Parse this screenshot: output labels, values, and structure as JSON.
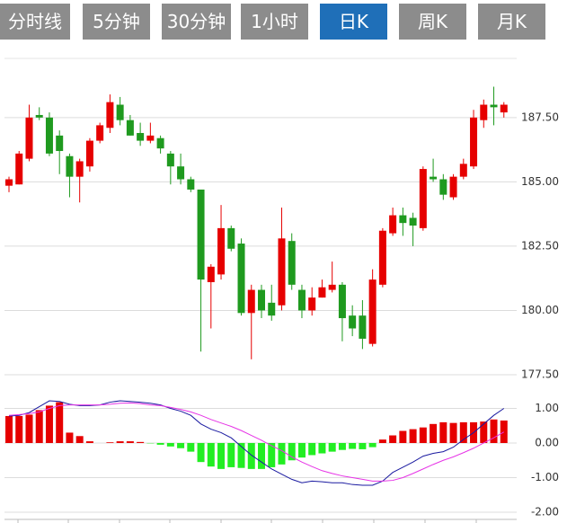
{
  "tabs": [
    {
      "label": "分时线"
    },
    {
      "label": "5分钟"
    },
    {
      "label": "30分钟"
    },
    {
      "label": "1小时"
    },
    {
      "label": "日K"
    },
    {
      "label": "周K"
    },
    {
      "label": "月K"
    }
  ],
  "active_tab": 4,
  "chart_data": [
    {
      "type": "candlestick",
      "up_color": "#e60000",
      "down_color": "#1f9a1f",
      "ylim": [
        177.5,
        189.8
      ],
      "yticks": [
        {
          "value": 177.5,
          "label": "177.50"
        },
        {
          "value": 180,
          "label": "180.00"
        },
        {
          "value": 182.5,
          "label": "182.50"
        },
        {
          "value": 185,
          "label": "185.00"
        },
        {
          "value": 187.5,
          "label": "187.50"
        }
      ],
      "open": [
        184.85,
        184.9,
        185.9,
        187.6,
        187.5,
        186.8,
        186.0,
        185.2,
        185.6,
        186.6,
        187.1,
        188.0,
        187.4,
        186.9,
        186.6,
        186.7,
        186.1,
        185.6,
        185.1,
        184.7,
        181.1,
        181.4,
        183.2,
        182.6,
        179.9,
        180.8,
        180.3,
        180.2,
        182.7,
        180.8,
        180.0,
        180.5,
        180.8,
        181.0,
        179.8,
        179.8,
        178.7,
        181.0,
        183.0,
        183.7,
        183.6,
        183.2,
        185.2,
        185.1,
        184.4,
        185.2,
        185.6,
        187.4,
        188.0,
        187.7
      ],
      "high": [
        185.2,
        186.2,
        188.0,
        187.9,
        187.7,
        187.0,
        186.1,
        185.9,
        186.7,
        187.3,
        188.4,
        188.3,
        187.6,
        187.3,
        187.3,
        186.8,
        186.2,
        186.1,
        185.2,
        184.7,
        181.8,
        184.1,
        183.3,
        182.8,
        181.0,
        181.0,
        181.0,
        184.0,
        183.0,
        181.0,
        180.9,
        181.2,
        181.9,
        181.1,
        180.2,
        180.4,
        181.6,
        183.2,
        184.0,
        184.0,
        183.8,
        185.6,
        185.9,
        185.3,
        185.3,
        185.9,
        187.8,
        188.2,
        188.7,
        188.1
      ],
      "low": [
        184.6,
        184.9,
        185.8,
        187.4,
        186.0,
        185.3,
        184.4,
        184.2,
        185.4,
        186.5,
        186.9,
        187.2,
        186.8,
        186.4,
        186.5,
        186.1,
        184.9,
        184.9,
        184.6,
        178.4,
        179.3,
        181.2,
        182.3,
        179.8,
        178.1,
        179.7,
        179.6,
        180.0,
        180.8,
        179.7,
        179.8,
        180.5,
        180.7,
        178.8,
        179.0,
        178.5,
        178.6,
        180.9,
        182.9,
        182.9,
        182.5,
        183.1,
        185.0,
        184.3,
        184.3,
        185.1,
        185.5,
        187.1,
        187.2,
        187.5
      ],
      "close": [
        185.1,
        186.1,
        187.5,
        187.5,
        186.1,
        186.2,
        185.2,
        185.8,
        186.6,
        187.2,
        188.1,
        187.4,
        186.8,
        186.6,
        186.8,
        186.3,
        185.6,
        185.1,
        184.7,
        181.2,
        181.7,
        183.2,
        182.4,
        179.9,
        180.8,
        180.0,
        179.8,
        182.8,
        181.0,
        180.0,
        180.5,
        180.9,
        181.0,
        179.7,
        179.3,
        178.9,
        181.2,
        183.1,
        183.7,
        183.4,
        183.3,
        185.5,
        185.1,
        184.5,
        185.2,
        185.7,
        187.5,
        188.0,
        187.9,
        188.0
      ]
    },
    {
      "type": "macd",
      "ylim": [
        -2.25,
        1.8
      ],
      "yticks": [
        {
          "value": -2,
          "label": "-2.00"
        },
        {
          "value": -1,
          "label": "-1.00"
        },
        {
          "value": 0,
          "label": "0.00"
        },
        {
          "value": 1,
          "label": "1.00"
        }
      ],
      "histogram": {
        "up_color": "#e60000",
        "down_color": "#22ee22",
        "values": [
          0.78,
          0.78,
          0.82,
          0.95,
          1.08,
          1.18,
          0.3,
          0.2,
          0.05,
          0,
          0.02,
          0.05,
          0.05,
          0.03,
          -0.01,
          -0.05,
          -0.1,
          -0.15,
          -0.25,
          -0.55,
          -0.68,
          -0.75,
          -0.7,
          -0.72,
          -0.75,
          -0.75,
          -0.7,
          -0.62,
          -0.5,
          -0.42,
          -0.35,
          -0.3,
          -0.25,
          -0.2,
          -0.17,
          -0.18,
          -0.12,
          0.1,
          0.22,
          0.35,
          0.4,
          0.45,
          0.55,
          0.6,
          0.58,
          0.6,
          0.6,
          0.62,
          0.68,
          0.65
        ]
      },
      "lines": [
        {
          "color": "#1a1aa0",
          "values": [
            0.78,
            0.8,
            0.88,
            1.05,
            1.22,
            1.2,
            1.12,
            1.08,
            1.08,
            1.1,
            1.18,
            1.22,
            1.2,
            1.18,
            1.15,
            1.1,
            1.0,
            0.92,
            0.8,
            0.55,
            0.4,
            0.3,
            0.15,
            -0.1,
            -0.35,
            -0.55,
            -0.75,
            -0.9,
            -1.05,
            -1.15,
            -1.1,
            -1.12,
            -1.15,
            -1.15,
            -1.2,
            -1.22,
            -1.22,
            -1.1,
            -0.85,
            -0.7,
            -0.55,
            -0.38,
            -0.3,
            -0.25,
            -0.12,
            0.1,
            0.3,
            0.55,
            0.8,
            1.0
          ]
        },
        {
          "color": "#e633e6",
          "values": [
            0.8,
            0.82,
            0.85,
            0.9,
            1.0,
            1.08,
            1.1,
            1.1,
            1.1,
            1.1,
            1.12,
            1.15,
            1.16,
            1.14,
            1.1,
            1.08,
            1.03,
            0.97,
            0.9,
            0.8,
            0.68,
            0.58,
            0.48,
            0.36,
            0.22,
            0.08,
            -0.08,
            -0.22,
            -0.4,
            -0.55,
            -0.68,
            -0.8,
            -0.88,
            -0.95,
            -1.0,
            -1.05,
            -1.1,
            -1.1,
            -1.08,
            -1.0,
            -0.88,
            -0.75,
            -0.62,
            -0.5,
            -0.4,
            -0.28,
            -0.15,
            0.0,
            0.15,
            0.32
          ]
        }
      ]
    }
  ]
}
